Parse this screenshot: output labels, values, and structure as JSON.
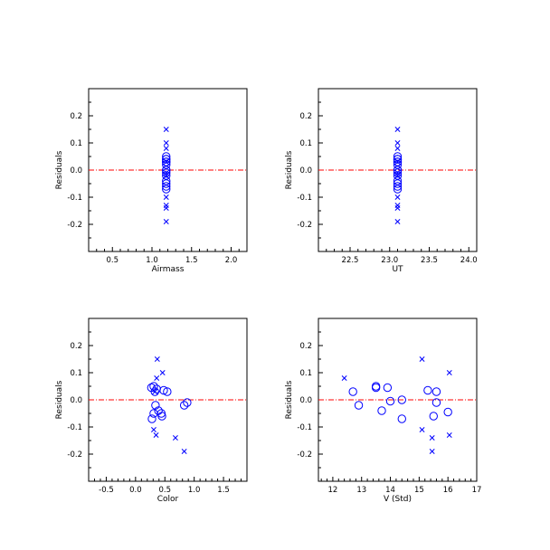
{
  "colors": {
    "axis": "#000000",
    "marker": "#0000ff",
    "zero_line": "#ff0000"
  },
  "chart_data": [
    {
      "type": "scatter",
      "xlabel": "Airmass",
      "ylabel": "Residuals",
      "xlim": [
        0.2,
        2.2
      ],
      "ylim": [
        -0.3,
        0.3
      ],
      "xticks": [
        0.5,
        1.0,
        1.5,
        2.0
      ],
      "xtick_labels": [
        "0.5",
        "1.0",
        "1.5",
        "2.0"
      ],
      "yticks": [
        -0.2,
        -0.1,
        0.0,
        0.1,
        0.2
      ],
      "ytick_labels": [
        "-0.2",
        "-0.1",
        "0.0",
        "0.1",
        "0.2"
      ],
      "reference_line_y": 0,
      "series": [
        {
          "marker": "x",
          "x": [
            1.18,
            1.18,
            1.18,
            1.18,
            1.18,
            1.18,
            1.18,
            1.18,
            1.18,
            1.18
          ],
          "y": [
            0.15,
            0.1,
            0.08,
            -0.01,
            -0.02,
            -0.1,
            -0.13,
            -0.14,
            -0.19,
            0.03
          ]
        },
        {
          "marker": "o",
          "x": [
            1.18,
            1.18,
            1.18,
            1.18,
            1.18,
            1.18,
            1.18,
            1.18,
            1.18,
            1.18,
            1.18,
            1.18,
            1.18,
            1.18
          ],
          "y": [
            0.05,
            0.04,
            0.04,
            0.03,
            0.03,
            0.02,
            0.0,
            0.0,
            -0.01,
            -0.02,
            -0.04,
            -0.05,
            -0.06,
            -0.07
          ]
        }
      ]
    },
    {
      "type": "scatter",
      "xlabel": "UT",
      "ylabel": "Residuals",
      "xlim": [
        22.1,
        24.1
      ],
      "ylim": [
        -0.3,
        0.3
      ],
      "xticks": [
        22.5,
        23.0,
        23.5,
        24.0
      ],
      "xtick_labels": [
        "22.5",
        "23.0",
        "23.5",
        "24.0"
      ],
      "yticks": [
        -0.2,
        -0.1,
        0.0,
        0.1,
        0.2
      ],
      "ytick_labels": [
        "-0.2",
        "-0.1",
        "0.0",
        "0.1",
        "0.2"
      ],
      "reference_line_y": 0,
      "series": [
        {
          "marker": "x",
          "x": [
            23.1,
            23.1,
            23.1,
            23.1,
            23.1,
            23.1,
            23.1,
            23.1,
            23.1,
            23.1
          ],
          "y": [
            0.15,
            0.1,
            0.08,
            -0.01,
            -0.02,
            -0.1,
            -0.13,
            -0.14,
            -0.19,
            0.03
          ]
        },
        {
          "marker": "o",
          "x": [
            23.1,
            23.1,
            23.1,
            23.1,
            23.1,
            23.1,
            23.1,
            23.1,
            23.1,
            23.1,
            23.1,
            23.1,
            23.1,
            23.1
          ],
          "y": [
            0.05,
            0.04,
            0.04,
            0.03,
            0.03,
            0.02,
            0.0,
            0.0,
            -0.01,
            -0.02,
            -0.04,
            -0.05,
            -0.06,
            -0.07
          ]
        }
      ]
    },
    {
      "type": "scatter",
      "xlabel": "Color",
      "ylabel": "Residuals",
      "xlim": [
        -0.8,
        1.9
      ],
      "ylim": [
        -0.3,
        0.3
      ],
      "xticks": [
        -0.5,
        0.0,
        0.5,
        1.0,
        1.5
      ],
      "xtick_labels": [
        "-0.5",
        "0.0",
        "0.5",
        "1.0",
        "1.5"
      ],
      "yticks": [
        -0.2,
        -0.1,
        0.0,
        0.1,
        0.2
      ],
      "ytick_labels": [
        "-0.2",
        "-0.1",
        "0.0",
        "0.1",
        "0.2"
      ],
      "reference_line_y": 0,
      "series": [
        {
          "marker": "x",
          "x": [
            0.37,
            0.46,
            0.36,
            0.31,
            0.35,
            0.68,
            0.83,
            0.33
          ],
          "y": [
            0.15,
            0.1,
            0.08,
            -0.11,
            -0.13,
            -0.14,
            -0.19,
            0.03
          ]
        },
        {
          "marker": "o",
          "x": [
            0.31,
            0.36,
            0.27,
            0.54,
            0.33,
            0.48,
            0.88,
            0.34,
            0.39,
            0.44,
            0.83,
            0.31,
            0.45,
            0.28
          ],
          "y": [
            0.05,
            0.04,
            0.045,
            0.03,
            0.03,
            0.035,
            -0.01,
            -0.02,
            -0.04,
            -0.05,
            -0.02,
            -0.05,
            -0.06,
            -0.07
          ]
        }
      ]
    },
    {
      "type": "scatter",
      "xlabel": "V (Std)",
      "ylabel": "Residuals",
      "xlim": [
        11.5,
        17.0
      ],
      "ylim": [
        -0.3,
        0.3
      ],
      "xticks": [
        12,
        13,
        14,
        15,
        16,
        17
      ],
      "xtick_labels": [
        "12",
        "13",
        "14",
        "15",
        "16",
        "17"
      ],
      "yticks": [
        -0.2,
        -0.1,
        0.0,
        0.1,
        0.2
      ],
      "ytick_labels": [
        "-0.2",
        "-0.1",
        "0.0",
        "0.1",
        "0.2"
      ],
      "reference_line_y": 0,
      "series": [
        {
          "marker": "x",
          "x": [
            15.1,
            16.05,
            12.4,
            15.1,
            16.05,
            15.45,
            15.45
          ],
          "y": [
            0.15,
            0.1,
            0.08,
            -0.11,
            -0.13,
            -0.14,
            -0.19
          ]
        },
        {
          "marker": "o",
          "x": [
            13.5,
            13.5,
            13.9,
            12.7,
            15.3,
            15.6,
            14.0,
            12.9,
            14.4,
            15.6,
            13.7,
            16.0,
            15.5,
            14.4
          ],
          "y": [
            0.05,
            0.045,
            0.045,
            0.03,
            0.035,
            0.03,
            -0.005,
            -0.02,
            0.0,
            -0.01,
            -0.04,
            -0.045,
            -0.06,
            -0.07
          ]
        }
      ]
    }
  ]
}
